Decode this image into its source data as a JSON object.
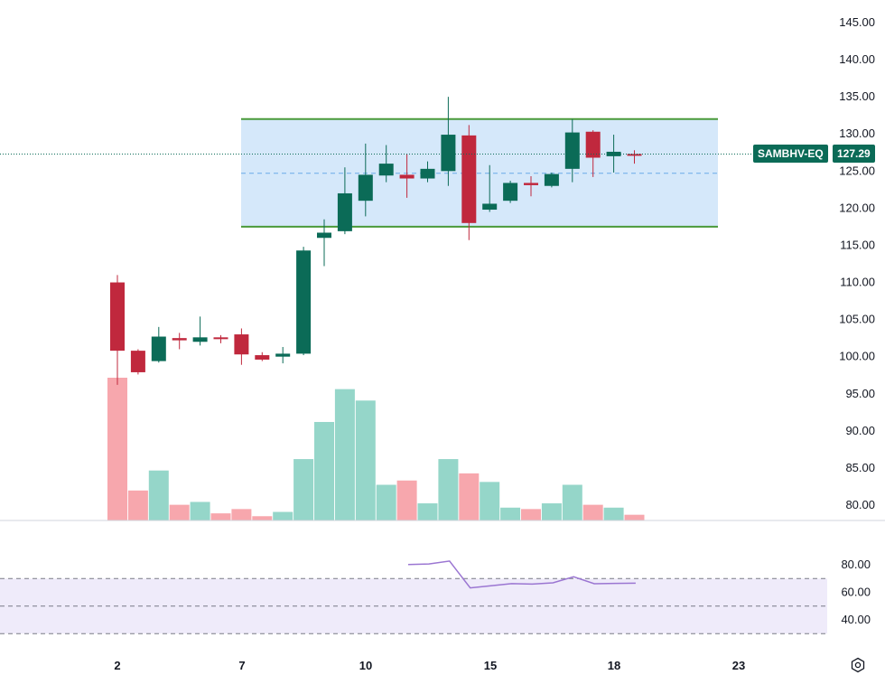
{
  "symbol": "SAMBHV-EQ",
  "last_price": "127.29",
  "colors": {
    "up": "#0b6b57",
    "down": "#c0283d",
    "vol_up": "#95d6c9",
    "vol_down": "#f7a7ad",
    "channel_fill": "#d5e8fa",
    "channel_line": "#4a9a3a",
    "rsi": "#9b76d2",
    "rsi_band": "#efebfa",
    "mid_line": "#6aa9e8"
  },
  "x_ticks": [
    "2",
    "7",
    "10",
    "15",
    "18",
    "23"
  ],
  "settings_icon": "gear-icon",
  "chart_data": [
    {
      "type": "candlestick",
      "ylim": [
        77.5,
        147.5
      ],
      "y_ticks": [
        "145.00",
        "140.00",
        "135.00",
        "130.00",
        "125.00",
        "120.00",
        "115.00",
        "110.00",
        "105.00",
        "100.00",
        "95.00",
        "90.00",
        "85.00",
        "80.00"
      ],
      "candles": [
        {
          "x": "2",
          "o": 110.0,
          "h": 111.0,
          "l": 96.2,
          "c": 100.8
        },
        {
          "x": "3",
          "o": 100.8,
          "h": 101.0,
          "l": 97.6,
          "c": 97.9
        },
        {
          "x": "4",
          "o": 99.4,
          "h": 104.0,
          "l": 99.2,
          "c": 102.7
        },
        {
          "x": "5",
          "o": 102.5,
          "h": 103.2,
          "l": 101.0,
          "c": 102.2
        },
        {
          "x": "6",
          "o": 102.0,
          "h": 105.4,
          "l": 101.5,
          "c": 102.6
        },
        {
          "x": "6b",
          "o": 102.6,
          "h": 102.9,
          "l": 101.8,
          "c": 102.4
        },
        {
          "x": "7",
          "o": 103.0,
          "h": 103.8,
          "l": 98.9,
          "c": 100.3
        },
        {
          "x": "8",
          "o": 100.2,
          "h": 100.6,
          "l": 99.4,
          "c": 99.6
        },
        {
          "x": "8b",
          "o": 100.0,
          "h": 101.3,
          "l": 99.1,
          "c": 100.4
        },
        {
          "x": "9",
          "o": 100.4,
          "h": 114.8,
          "l": 100.2,
          "c": 114.3
        },
        {
          "x": "9b",
          "o": 116.0,
          "h": 118.5,
          "l": 112.2,
          "c": 116.7
        },
        {
          "x": "10",
          "o": 116.9,
          "h": 125.5,
          "l": 116.5,
          "c": 122.0
        },
        {
          "x": "10b",
          "o": 121.0,
          "h": 128.7,
          "l": 118.9,
          "c": 124.5
        },
        {
          "x": "11",
          "o": 124.4,
          "h": 128.5,
          "l": 123.5,
          "c": 126.0
        },
        {
          "x": "12",
          "o": 124.5,
          "h": 127.3,
          "l": 121.4,
          "c": 124.0
        },
        {
          "x": "13",
          "o": 124.0,
          "h": 126.3,
          "l": 123.5,
          "c": 125.3
        },
        {
          "x": "14",
          "o": 125.0,
          "h": 135.0,
          "l": 123.0,
          "c": 129.9
        },
        {
          "x": "14b",
          "o": 129.8,
          "h": 131.2,
          "l": 115.7,
          "c": 118.0
        },
        {
          "x": "15",
          "o": 119.8,
          "h": 125.8,
          "l": 119.5,
          "c": 120.6
        },
        {
          "x": "16",
          "o": 121.0,
          "h": 123.7,
          "l": 120.7,
          "c": 123.4
        },
        {
          "x": "16b",
          "o": 123.4,
          "h": 124.3,
          "l": 121.6,
          "c": 123.1
        },
        {
          "x": "17",
          "o": 123.0,
          "h": 124.8,
          "l": 122.8,
          "c": 124.6
        },
        {
          "x": "17b",
          "o": 125.3,
          "h": 132.0,
          "l": 123.5,
          "c": 130.2
        },
        {
          "x": "18",
          "o": 130.3,
          "h": 130.5,
          "l": 124.2,
          "c": 126.8
        },
        {
          "x": "18b",
          "o": 127.0,
          "h": 129.9,
          "l": 124.8,
          "c": 127.6
        },
        {
          "x": "19",
          "o": 127.3,
          "h": 127.8,
          "l": 126.0,
          "c": 127.29
        }
      ],
      "volume": [
        1,
        0.21,
        0.35,
        0.11,
        0.13,
        0.05,
        0.08,
        0.03,
        0.06,
        0.43,
        0.69,
        0.92,
        0.84,
        0.25,
        0.28,
        0.12,
        0.43,
        0.33,
        0.27,
        0.09,
        0.08,
        0.12,
        0.25,
        0.11,
        0.09,
        0.04
      ],
      "channel": {
        "upper": 132.0,
        "lower": 117.5,
        "mid": 124.7,
        "from": "9",
        "to": "22"
      }
    },
    {
      "type": "line",
      "ylim": [
        30,
        85
      ],
      "y_ticks": [
        "80.00",
        "60.00",
        "40.00"
      ],
      "bands": [
        70,
        50,
        30
      ],
      "x": [
        "12",
        "13",
        "14",
        "15",
        "16",
        "17",
        "18",
        "19",
        "20",
        "21",
        "22",
        "23"
      ],
      "values": [
        80.2,
        80.6,
        82.7,
        63.2,
        64.8,
        66.3,
        66.0,
        66.9,
        71.3,
        66.2,
        66.5,
        66.6
      ]
    }
  ]
}
